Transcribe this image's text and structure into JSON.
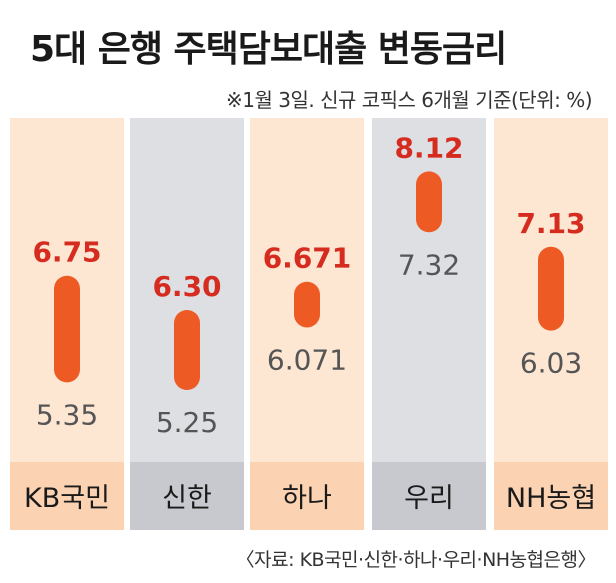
{
  "title": "5대 은행 주택담보대출 변동금리",
  "subtitle": "※1월 3일. 신규 코픽스 6개월 기준(단위: %)",
  "source": "〈자료: KB국민·신한·하나·우리·NH농협은행〉",
  "colors": {
    "bar": "#ee5a24",
    "high_label": "#d62b1f",
    "low_label": "#555555",
    "column_orange": "#fde6d2",
    "column_gray": "#dedfe3",
    "footer_orange": "#fbd3b3",
    "footer_gray": "#c8c9ce"
  },
  "chart_data": {
    "type": "bar",
    "subtype": "range",
    "categories": [
      "KB국민",
      "신한",
      "하나",
      "우리",
      "NH농협"
    ],
    "high": [
      6.75,
      6.3,
      6.671,
      8.12,
      7.13
    ],
    "low": [
      5.35,
      5.25,
      6.071,
      7.32,
      6.03
    ],
    "high_labels": [
      "6.75",
      "6.30",
      "6.671",
      "8.12",
      "7.13"
    ],
    "low_labels": [
      "5.35",
      "5.25",
      "6.071",
      "7.32",
      "6.03"
    ],
    "column_shading": [
      "orange",
      "gray",
      "orange",
      "gray",
      "orange"
    ],
    "ylim": [
      4.2,
      8.4
    ]
  }
}
